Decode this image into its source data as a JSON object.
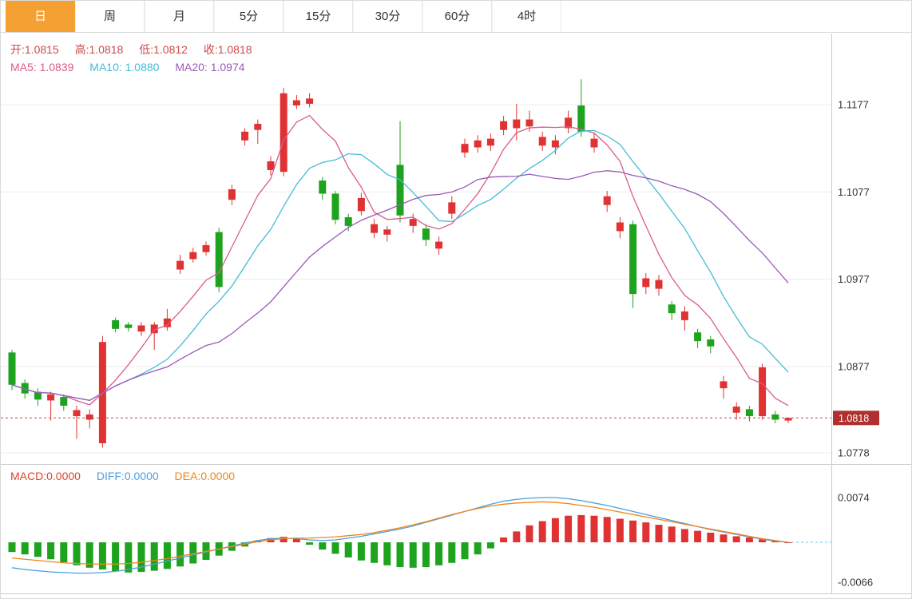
{
  "tabs": [
    {
      "label": "日",
      "active": true
    },
    {
      "label": "周",
      "active": false
    },
    {
      "label": "月",
      "active": false
    },
    {
      "label": "5分",
      "active": false
    },
    {
      "label": "15分",
      "active": false
    },
    {
      "label": "30分",
      "active": false
    },
    {
      "label": "60分",
      "active": false
    },
    {
      "label": "4时",
      "active": false
    }
  ],
  "main_panel": {
    "legend_ohlc": [
      "开:1.0815",
      "高:1.0818",
      "低:1.0812",
      "收:1.0818"
    ],
    "legend_ma": [
      "MA5: 1.0839",
      "MA10: 1.0880",
      "MA20: 1.0974"
    ],
    "y_axis_labels": [
      "1.1177",
      "1.1077",
      "1.0977",
      "1.0877",
      "1.0778"
    ],
    "current_price_label": "1.0818"
  },
  "macd_panel": {
    "legend": [
      "MACD:0.0000",
      "DIFF:0.0000",
      "DEA:0.0000"
    ],
    "y_axis_labels": [
      "0.0074",
      "-0.0066"
    ]
  },
  "colors": {
    "accent_tab": "#f5a033",
    "up": "#e03232",
    "down": "#1ea31e",
    "ma5": "#db5a8c",
    "ma10": "#45bcd8",
    "ma20": "#9b59b6",
    "ohlc_text": "#cf4a4a",
    "macd_text": "#e0432c",
    "diff_text": "#4a9fe0",
    "dea_text": "#f08618",
    "price_line": "#cc4444",
    "price_tag_bg": "#b03030",
    "axis_text": "#333333",
    "grid": "#ececec",
    "border": "#cccccc",
    "zero_dash": "#86d8e6"
  },
  "chart_data": [
    {
      "type": "candlestick",
      "convention": "red-up-green-down",
      "columns": [
        "open",
        "high",
        "low",
        "close"
      ],
      "y_axis_ticks": [
        1.1177,
        1.1077,
        1.0977,
        1.0877,
        1.0778
      ],
      "y_range": [
        1.0778,
        1.1177
      ],
      "current_price": 1.0818,
      "ma_periods": [
        5,
        10,
        20
      ],
      "ma_values_last": {
        "MA5": 1.0839,
        "MA10": 1.088,
        "MA20": 1.0974
      },
      "last_ohlc": {
        "open": 1.0815,
        "high": 1.0818,
        "low": 1.0812,
        "close": 1.0818
      },
      "candles": [
        [
          1.0893,
          1.0896,
          1.085,
          1.0856
        ],
        [
          1.0858,
          1.0862,
          1.084,
          1.0846
        ],
        [
          1.0848,
          1.0852,
          1.0832,
          1.0839
        ],
        [
          1.0838,
          1.0848,
          1.0815,
          1.0845
        ],
        [
          1.0842,
          1.0845,
          1.0826,
          1.0832
        ],
        [
          1.082,
          1.0832,
          1.0794,
          1.0827
        ],
        [
          1.0816,
          1.0828,
          1.0806,
          1.0822
        ],
        [
          1.0789,
          1.0912,
          1.0784,
          1.0905
        ],
        [
          1.093,
          1.0933,
          1.0916,
          1.092
        ],
        [
          1.0925,
          1.0928,
          1.0917,
          1.0921
        ],
        [
          1.0917,
          1.0928,
          1.0912,
          1.0924
        ],
        [
          1.0915,
          1.0928,
          1.0896,
          1.0925
        ],
        [
          1.0922,
          1.0943,
          1.0918,
          1.0932
        ],
        [
          1.0988,
          1.1005,
          1.0983,
          1.0998
        ],
        [
          1.1,
          1.1013,
          1.0996,
          1.1008
        ],
        [
          1.1008,
          1.102,
          1.1004,
          1.1016
        ],
        [
          1.1031,
          1.1036,
          1.0962,
          1.0968
        ],
        [
          1.1068,
          1.1085,
          1.1062,
          1.108
        ],
        [
          1.1136,
          1.115,
          1.113,
          1.1146
        ],
        [
          1.1148,
          1.116,
          1.1132,
          1.1155
        ],
        [
          1.1102,
          1.1118,
          1.1096,
          1.1112
        ],
        [
          1.11,
          1.1196,
          1.1095,
          1.119
        ],
        [
          1.1176,
          1.1188,
          1.1172,
          1.1182
        ],
        [
          1.1178,
          1.119,
          1.1174,
          1.1184
        ],
        [
          1.109,
          1.1094,
          1.1068,
          1.1075
        ],
        [
          1.1075,
          1.1078,
          1.104,
          1.1045
        ],
        [
          1.1048,
          1.1052,
          1.1032,
          1.1038
        ],
        [
          1.1055,
          1.1076,
          1.105,
          1.107
        ],
        [
          1.103,
          1.1046,
          1.1024,
          1.104
        ],
        [
          1.1028,
          1.1038,
          1.102,
          1.1034
        ],
        [
          1.1108,
          1.1158,
          1.1042,
          1.105
        ],
        [
          1.1038,
          1.1052,
          1.103,
          1.1046
        ],
        [
          1.1035,
          1.104,
          1.1015,
          1.1022
        ],
        [
          1.1012,
          1.1026,
          1.1005,
          1.102
        ],
        [
          1.1052,
          1.1072,
          1.1046,
          1.1065
        ],
        [
          1.1122,
          1.1138,
          1.1116,
          1.1132
        ],
        [
          1.1128,
          1.1142,
          1.1122,
          1.1136
        ],
        [
          1.113,
          1.1144,
          1.1124,
          1.1138
        ],
        [
          1.1148,
          1.1164,
          1.1142,
          1.1158
        ],
        [
          1.115,
          1.1178,
          1.1136,
          1.116
        ],
        [
          1.1152,
          1.117,
          1.1146,
          1.116
        ],
        [
          1.113,
          1.1146,
          1.1124,
          1.114
        ],
        [
          1.1128,
          1.1142,
          1.112,
          1.1136
        ],
        [
          1.115,
          1.117,
          1.1144,
          1.1162
        ],
        [
          1.1176,
          1.1206,
          1.114,
          1.1146
        ],
        [
          1.1128,
          1.1144,
          1.1122,
          1.1138
        ],
        [
          1.1062,
          1.1078,
          1.1054,
          1.1072
        ],
        [
          1.1032,
          1.1048,
          1.1024,
          1.1042
        ],
        [
          1.104,
          1.1044,
          1.0944,
          1.096
        ],
        [
          1.0968,
          1.0984,
          1.096,
          1.0978
        ],
        [
          1.0966,
          1.0982,
          1.0958,
          1.0976
        ],
        [
          1.0948,
          1.0952,
          1.093,
          1.0938
        ],
        [
          1.093,
          1.0946,
          1.0918,
          1.094
        ],
        [
          1.0916,
          1.092,
          1.0898,
          1.0906
        ],
        [
          1.0908,
          1.0912,
          1.0892,
          1.09
        ],
        [
          1.0852,
          1.0866,
          1.084,
          1.086
        ],
        [
          1.0824,
          1.0836,
          1.0816,
          1.0831
        ],
        [
          1.0828,
          1.0832,
          1.0814,
          1.082
        ],
        [
          1.082,
          1.088,
          1.0816,
          1.0876
        ],
        [
          1.0822,
          1.0826,
          1.0812,
          1.0816
        ],
        [
          1.0815,
          1.0818,
          1.0812,
          1.0818
        ]
      ]
    },
    {
      "type": "macd",
      "y_axis_ticks": [
        0.0074,
        -0.0066
      ],
      "last_values": {
        "MACD": 0.0,
        "DIFF": 0.0,
        "DEA": 0.0
      },
      "hist": [
        -0.0016,
        -0.002,
        -0.0024,
        -0.0028,
        -0.0033,
        -0.0038,
        -0.0042,
        -0.0045,
        -0.0048,
        -0.005,
        -0.0049,
        -0.0047,
        -0.0044,
        -0.004,
        -0.0035,
        -0.0029,
        -0.0022,
        -0.0014,
        -0.0007,
        0.0003,
        0.0007,
        0.0009,
        0.0006,
        -0.0004,
        -0.0012,
        -0.0019,
        -0.0025,
        -0.003,
        -0.0034,
        -0.0038,
        -0.0041,
        -0.0042,
        -0.0041,
        -0.0038,
        -0.0034,
        -0.0028,
        -0.002,
        -0.001,
        0.0008,
        0.0018,
        0.0028,
        0.0035,
        0.004,
        0.0044,
        0.0045,
        0.0044,
        0.0042,
        0.0039,
        0.0036,
        0.0033,
        0.0029,
        0.0026,
        0.0022,
        0.0019,
        0.0016,
        0.0013,
        0.001,
        0.0008,
        0.0005,
        0.0003,
        0.0
      ],
      "diff": [
        -0.0042,
        -0.0045,
        -0.0047,
        -0.0049,
        -0.005,
        -0.0051,
        -0.0051,
        -0.005,
        -0.0048,
        -0.0045,
        -0.0041,
        -0.0036,
        -0.0031,
        -0.0026,
        -0.0021,
        -0.0016,
        -0.0011,
        -0.0006,
        -0.0001,
        0.0003,
        0.0006,
        0.0007,
        0.0006,
        0.0004,
        0.0003,
        0.0004,
        0.0007,
        0.001,
        0.0014,
        0.0018,
        0.0022,
        0.0027,
        0.0033,
        0.0039,
        0.0045,
        0.0051,
        0.0057,
        0.0063,
        0.0068,
        0.0071,
        0.0073,
        0.0074,
        0.0074,
        0.0072,
        0.0069,
        0.0065,
        0.0061,
        0.0056,
        0.0051,
        0.0046,
        0.0041,
        0.0036,
        0.0031,
        0.0026,
        0.0021,
        0.0017,
        0.0013,
        0.0009,
        0.0005,
        0.0002,
        0.0
      ],
      "dea": [
        -0.0026,
        -0.0028,
        -0.003,
        -0.0032,
        -0.0034,
        -0.0035,
        -0.0036,
        -0.0036,
        -0.0036,
        -0.0035,
        -0.0033,
        -0.003,
        -0.0027,
        -0.0023,
        -0.0019,
        -0.0015,
        -0.0011,
        -0.0007,
        -0.0003,
        0.0001,
        0.0004,
        0.0006,
        0.0007,
        0.0007,
        0.0008,
        0.0009,
        0.0011,
        0.0013,
        0.0016,
        0.002,
        0.0024,
        0.0029,
        0.0034,
        0.004,
        0.0046,
        0.0051,
        0.0056,
        0.006,
        0.0063,
        0.0065,
        0.0066,
        0.0067,
        0.0066,
        0.0064,
        0.0061,
        0.0058,
        0.0054,
        0.005,
        0.0046,
        0.0042,
        0.0038,
        0.0034,
        0.003,
        0.0026,
        0.0022,
        0.0018,
        0.0014,
        0.001,
        0.0006,
        0.0003,
        0.0
      ]
    }
  ]
}
